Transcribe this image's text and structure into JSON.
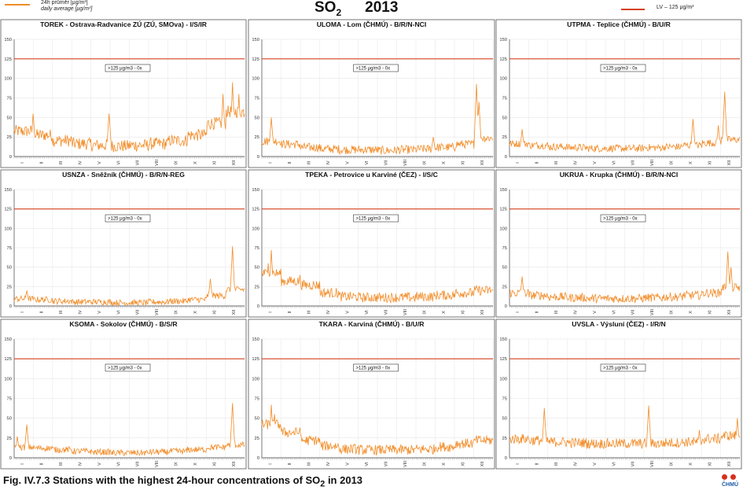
{
  "legend": {
    "daily_line1": "24h průměr [μg/m³]",
    "daily_line2": "daily average [μg/m³]",
    "limit": "LV – 125 μg/m³"
  },
  "title": {
    "pollutant": "SO",
    "subscript": "2",
    "year": "2013"
  },
  "caption": {
    "text": "Fig. IV.7.3  Stations with the highest 24-hour concentrations of SO",
    "subscript": "2",
    "suffix": " in 2013"
  },
  "logo": {
    "text": "ČHMÚ"
  },
  "colors": {
    "series": "#f28c28",
    "limit": "#d6401e"
  },
  "months": [
    "I",
    "II",
    "III",
    "IV",
    "V",
    "VI",
    "VII",
    "VIII",
    "IX",
    "X",
    "XI",
    "XII"
  ],
  "chart_data": [
    {
      "type": "line",
      "title": "TOREK - Ostrava-Radvanice ZÚ (ZÚ, SMOva) - I/S/IR",
      "exceed_label": ">125 μg/m3 - 0x",
      "limit": 125,
      "ylim": [
        0,
        150
      ],
      "yticks": [
        0,
        25,
        50,
        75,
        100,
        125,
        150
      ],
      "profile": {
        "base": [
          30,
          25,
          18,
          14,
          12,
          11,
          12,
          14,
          18,
          25,
          40,
          55
        ],
        "spikes": [
          [
            30,
            55
          ],
          [
            150,
            55
          ],
          [
            345,
            95
          ],
          [
            330,
            80
          ],
          [
            355,
            80
          ]
        ],
        "noise": 10,
        "max": 96
      }
    },
    {
      "type": "line",
      "title": "ULOMA - Lom (ČHMÚ) - B/R/N-NCI",
      "exceed_label": ">125 μg/m3 - 0x",
      "limit": 125,
      "ylim": [
        0,
        150
      ],
      "yticks": [
        0,
        25,
        50,
        75,
        100,
        125,
        150
      ],
      "profile": {
        "base": [
          18,
          14,
          10,
          8,
          7,
          7,
          6,
          7,
          8,
          10,
          14,
          22
        ],
        "spikes": [
          [
            15,
            50
          ],
          [
            270,
            25
          ],
          [
            338,
            93
          ],
          [
            342,
            70
          ]
        ],
        "noise": 7,
        "max": 93
      }
    },
    {
      "type": "line",
      "title": "UTPMA - Teplice (ČHMÚ) - B/U/R",
      "exceed_label": ">125 μg/m3 - 0x",
      "limit": 125,
      "ylim": [
        0,
        150
      ],
      "yticks": [
        0,
        25,
        50,
        75,
        100,
        125,
        150
      ],
      "profile": {
        "base": [
          15,
          13,
          11,
          10,
          9,
          9,
          9,
          10,
          11,
          13,
          16,
          20
        ],
        "spikes": [
          [
            20,
            35
          ],
          [
            290,
            48
          ],
          [
            340,
            83
          ],
          [
            330,
            40
          ]
        ],
        "noise": 6,
        "max": 83
      }
    },
    {
      "type": "line",
      "title": "USNZA - Sněžník (ČHMÚ) - B/R/N-REG",
      "exceed_label": ">125 μg/m3 - 0x",
      "limit": 125,
      "ylim": [
        0,
        150
      ],
      "yticks": [
        0,
        25,
        50,
        75,
        100,
        125,
        150
      ],
      "profile": {
        "base": [
          8,
          7,
          5,
          4,
          4,
          3,
          3,
          4,
          5,
          7,
          12,
          20
        ],
        "spikes": [
          [
            345,
            77
          ],
          [
            310,
            35
          ],
          [
            20,
            20
          ]
        ],
        "noise": 5,
        "max": 77
      }
    },
    {
      "type": "line",
      "title": "TPEKA - Petrovice u Karviné (ČEZ) - I/S/C",
      "exceed_label": ">125 μg/m3 - 0x",
      "limit": 125,
      "ylim": [
        0,
        150
      ],
      "yticks": [
        0,
        25,
        50,
        75,
        100,
        125,
        150
      ],
      "profile": {
        "base": [
          40,
          30,
          25,
          15,
          10,
          9,
          9,
          9,
          10,
          12,
          15,
          18
        ],
        "spikes": [
          [
            15,
            72
          ],
          [
            10,
            55
          ],
          [
            60,
            40
          ]
        ],
        "noise": 8,
        "max": 72
      }
    },
    {
      "type": "line",
      "title": "UKRUA - Krupka (ČHMÚ) - B/R/N-NCI",
      "exceed_label": ">125 μg/m3 - 0x",
      "limit": 125,
      "ylim": [
        0,
        150
      ],
      "yticks": [
        0,
        25,
        50,
        75,
        100,
        125,
        150
      ],
      "profile": {
        "base": [
          15,
          12,
          10,
          9,
          8,
          8,
          8,
          9,
          10,
          12,
          15,
          22
        ],
        "spikes": [
          [
            345,
            70
          ],
          [
            350,
            50
          ],
          [
            20,
            38
          ]
        ],
        "noise": 7,
        "max": 70
      }
    },
    {
      "type": "line",
      "title": "KSOMA - Sokolov (ČHMÚ) - B/S/R",
      "exceed_label": ">125 μg/m3 - 0x",
      "limit": 125,
      "ylim": [
        0,
        150
      ],
      "yticks": [
        0,
        25,
        50,
        75,
        100,
        125,
        150
      ],
      "profile": {
        "base": [
          12,
          11,
          9,
          7,
          6,
          5,
          5,
          6,
          7,
          9,
          12,
          15
        ],
        "spikes": [
          [
            20,
            42
          ],
          [
            345,
            69
          ],
          [
            5,
            27
          ]
        ],
        "noise": 5,
        "max": 69
      }
    },
    {
      "type": "line",
      "title": "TKARA - Karviná (ČHMÚ) - B/U/R",
      "exceed_label": ">125 μg/m3 - 0x",
      "limit": 125,
      "ylim": [
        0,
        150
      ],
      "yticks": [
        0,
        25,
        50,
        75,
        100,
        125,
        150
      ],
      "profile": {
        "base": [
          40,
          30,
          20,
          13,
          9,
          8,
          8,
          8,
          9,
          12,
          16,
          20
        ],
        "spikes": [
          [
            15,
            67
          ],
          [
            20,
            55
          ],
          [
            60,
            38
          ]
        ],
        "noise": 8,
        "max": 67
      }
    },
    {
      "type": "line",
      "title": "UVSLA - Výsluní (ČEZ) - I/R/N",
      "exceed_label": ">125 μg/m3 - 0x",
      "limit": 125,
      "ylim": [
        0,
        150
      ],
      "yticks": [
        0,
        25,
        50,
        75,
        100,
        125,
        150
      ],
      "profile": {
        "base": [
          22,
          20,
          18,
          17,
          16,
          16,
          16,
          16,
          17,
          18,
          22,
          26
        ],
        "spikes": [
          [
            55,
            63
          ],
          [
            220,
            66
          ],
          [
            360,
            50
          ],
          [
            300,
            35
          ]
        ],
        "noise": 8,
        "max": 66
      }
    }
  ]
}
